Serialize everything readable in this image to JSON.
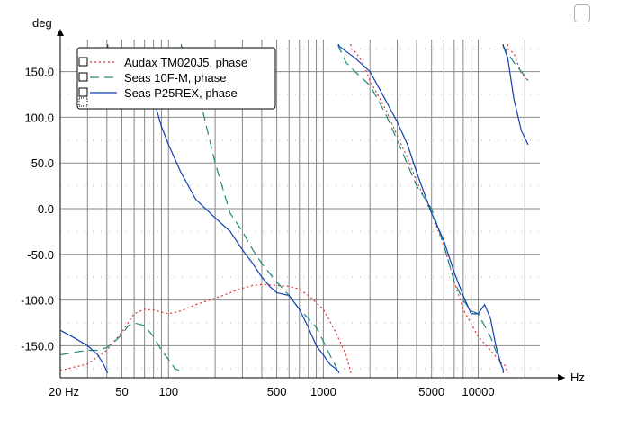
{
  "chart_data": {
    "type": "line",
    "title": "",
    "xlabel": "Hz",
    "ylabel": "deg",
    "x_scale": "log",
    "xlim": [
      20,
      25000
    ],
    "ylim": [
      -185,
      185
    ],
    "x_tick_labels": [
      {
        "value": 20,
        "label": "20 Hz"
      },
      {
        "value": 50,
        "label": "50"
      },
      {
        "value": 100,
        "label": "100"
      },
      {
        "value": 500,
        "label": "500"
      },
      {
        "value": 1000,
        "label": "1000"
      },
      {
        "value": 5000,
        "label": "5000"
      },
      {
        "value": 10000,
        "label": "10000"
      }
    ],
    "y_tick_labels": [
      {
        "value": 150,
        "label": "150.0"
      },
      {
        "value": 100,
        "label": "100.0"
      },
      {
        "value": 50,
        "label": "50.0"
      },
      {
        "value": 0,
        "label": "0.0"
      },
      {
        "value": -50,
        "label": "-50.0"
      },
      {
        "value": -100,
        "label": "-100.0"
      },
      {
        "value": -150,
        "label": "-150.0"
      }
    ],
    "grid": true,
    "legend_position": "top-left",
    "series": [
      {
        "name": "Audax TM020J5, phase",
        "color": "#e03030",
        "dash": "dotted",
        "points": [
          [
            20,
            -177
          ],
          [
            30,
            -170
          ],
          [
            40,
            -155
          ],
          [
            50,
            -135
          ],
          [
            60,
            -115
          ],
          [
            70,
            -110
          ],
          [
            80,
            -111
          ],
          [
            100,
            -115
          ],
          [
            120,
            -112
          ],
          [
            150,
            -105
          ],
          [
            200,
            -98
          ],
          [
            250,
            -92
          ],
          [
            300,
            -87
          ],
          [
            350,
            -84
          ],
          [
            400,
            -83
          ],
          [
            500,
            -84
          ],
          [
            600,
            -85
          ],
          [
            700,
            -88
          ],
          [
            800,
            -95
          ],
          [
            1000,
            -110
          ],
          [
            1200,
            -135
          ],
          [
            1400,
            -160
          ],
          [
            1500,
            -178
          ],
          [
            1501,
            175
          ],
          [
            1600,
            172
          ],
          [
            1800,
            160
          ],
          [
            2000,
            140
          ],
          [
            2500,
            110
          ],
          [
            3000,
            80
          ],
          [
            3500,
            55
          ],
          [
            4000,
            30
          ],
          [
            5000,
            -5
          ],
          [
            6000,
            -40
          ],
          [
            7000,
            -80
          ],
          [
            8000,
            -110
          ],
          [
            10000,
            -140
          ],
          [
            12000,
            -155
          ],
          [
            14000,
            -168
          ],
          [
            15000,
            -172
          ],
          [
            15500,
            175
          ],
          [
            17000,
            170
          ],
          [
            19000,
            148
          ],
          [
            21000,
            140
          ]
        ]
      },
      {
        "name": "Seas 10F-M, phase",
        "color": "#1a8a7a",
        "dash": "dashed",
        "points": [
          [
            20,
            -160
          ],
          [
            25,
            -157
          ],
          [
            30,
            -155
          ],
          [
            35,
            -155
          ],
          [
            40,
            -152
          ],
          [
            45,
            -145
          ],
          [
            50,
            -138
          ],
          [
            55,
            -128
          ],
          [
            60,
            -125
          ],
          [
            70,
            -128
          ],
          [
            80,
            -140
          ],
          [
            90,
            -155
          ],
          [
            100,
            -165
          ],
          [
            110,
            -175
          ],
          [
            120,
            -178
          ],
          [
            121,
            178
          ],
          [
            130,
            170
          ],
          [
            140,
            160
          ],
          [
            150,
            140
          ],
          [
            170,
            100
          ],
          [
            200,
            50
          ],
          [
            250,
            -5
          ],
          [
            300,
            -25
          ],
          [
            350,
            -45
          ],
          [
            400,
            -60
          ],
          [
            500,
            -80
          ],
          [
            600,
            -95
          ],
          [
            700,
            -110
          ],
          [
            800,
            -120
          ],
          [
            900,
            -130
          ],
          [
            1000,
            -145
          ],
          [
            1100,
            -160
          ],
          [
            1200,
            -172
          ],
          [
            1250,
            178
          ],
          [
            1400,
            160
          ],
          [
            1600,
            150
          ],
          [
            2000,
            135
          ],
          [
            2500,
            105
          ],
          [
            3000,
            75
          ],
          [
            4000,
            25
          ],
          [
            5000,
            0
          ],
          [
            6000,
            -40
          ],
          [
            7000,
            -80
          ],
          [
            8000,
            -100
          ],
          [
            9000,
            -112
          ],
          [
            10000,
            -115
          ],
          [
            12000,
            -140
          ],
          [
            14000,
            -170
          ],
          [
            14500,
            -176
          ],
          [
            14501,
            178
          ],
          [
            15500,
            170
          ],
          [
            17000,
            160
          ],
          [
            20000,
            145
          ],
          [
            21000,
            140
          ]
        ]
      },
      {
        "name": "Seas P25REX, phase",
        "color": "#1040b0",
        "dash": "solid",
        "points": [
          [
            20,
            -133
          ],
          [
            25,
            -142
          ],
          [
            30,
            -150
          ],
          [
            35,
            -160
          ],
          [
            38,
            -170
          ],
          [
            40,
            -178
          ],
          [
            40.5,
            172
          ],
          [
            45,
            165
          ],
          [
            50,
            160
          ],
          [
            60,
            150
          ],
          [
            70,
            140
          ],
          [
            80,
            120
          ],
          [
            90,
            90
          ],
          [
            100,
            70
          ],
          [
            120,
            40
          ],
          [
            150,
            10
          ],
          [
            200,
            -10
          ],
          [
            250,
            -25
          ],
          [
            300,
            -45
          ],
          [
            350,
            -60
          ],
          [
            400,
            -75
          ],
          [
            450,
            -85
          ],
          [
            500,
            -92
          ],
          [
            600,
            -95
          ],
          [
            700,
            -110
          ],
          [
            800,
            -130
          ],
          [
            900,
            -150
          ],
          [
            1000,
            -160
          ],
          [
            1100,
            -170
          ],
          [
            1200,
            -175
          ],
          [
            1250,
            -178
          ],
          [
            1260,
            178
          ],
          [
            1400,
            172
          ],
          [
            1600,
            165
          ],
          [
            2000,
            150
          ],
          [
            2500,
            120
          ],
          [
            3000,
            95
          ],
          [
            3500,
            70
          ],
          [
            4000,
            40
          ],
          [
            5000,
            -5
          ],
          [
            6000,
            -35
          ],
          [
            7000,
            -70
          ],
          [
            8000,
            -95
          ],
          [
            9000,
            -115
          ],
          [
            10000,
            -115
          ],
          [
            11000,
            -105
          ],
          [
            12000,
            -120
          ],
          [
            13000,
            -150
          ],
          [
            14000,
            -170
          ],
          [
            14500,
            -176
          ],
          [
            14501,
            178
          ],
          [
            15500,
            165
          ],
          [
            17000,
            120
          ],
          [
            19000,
            85
          ],
          [
            21000,
            70
          ]
        ]
      }
    ]
  }
}
